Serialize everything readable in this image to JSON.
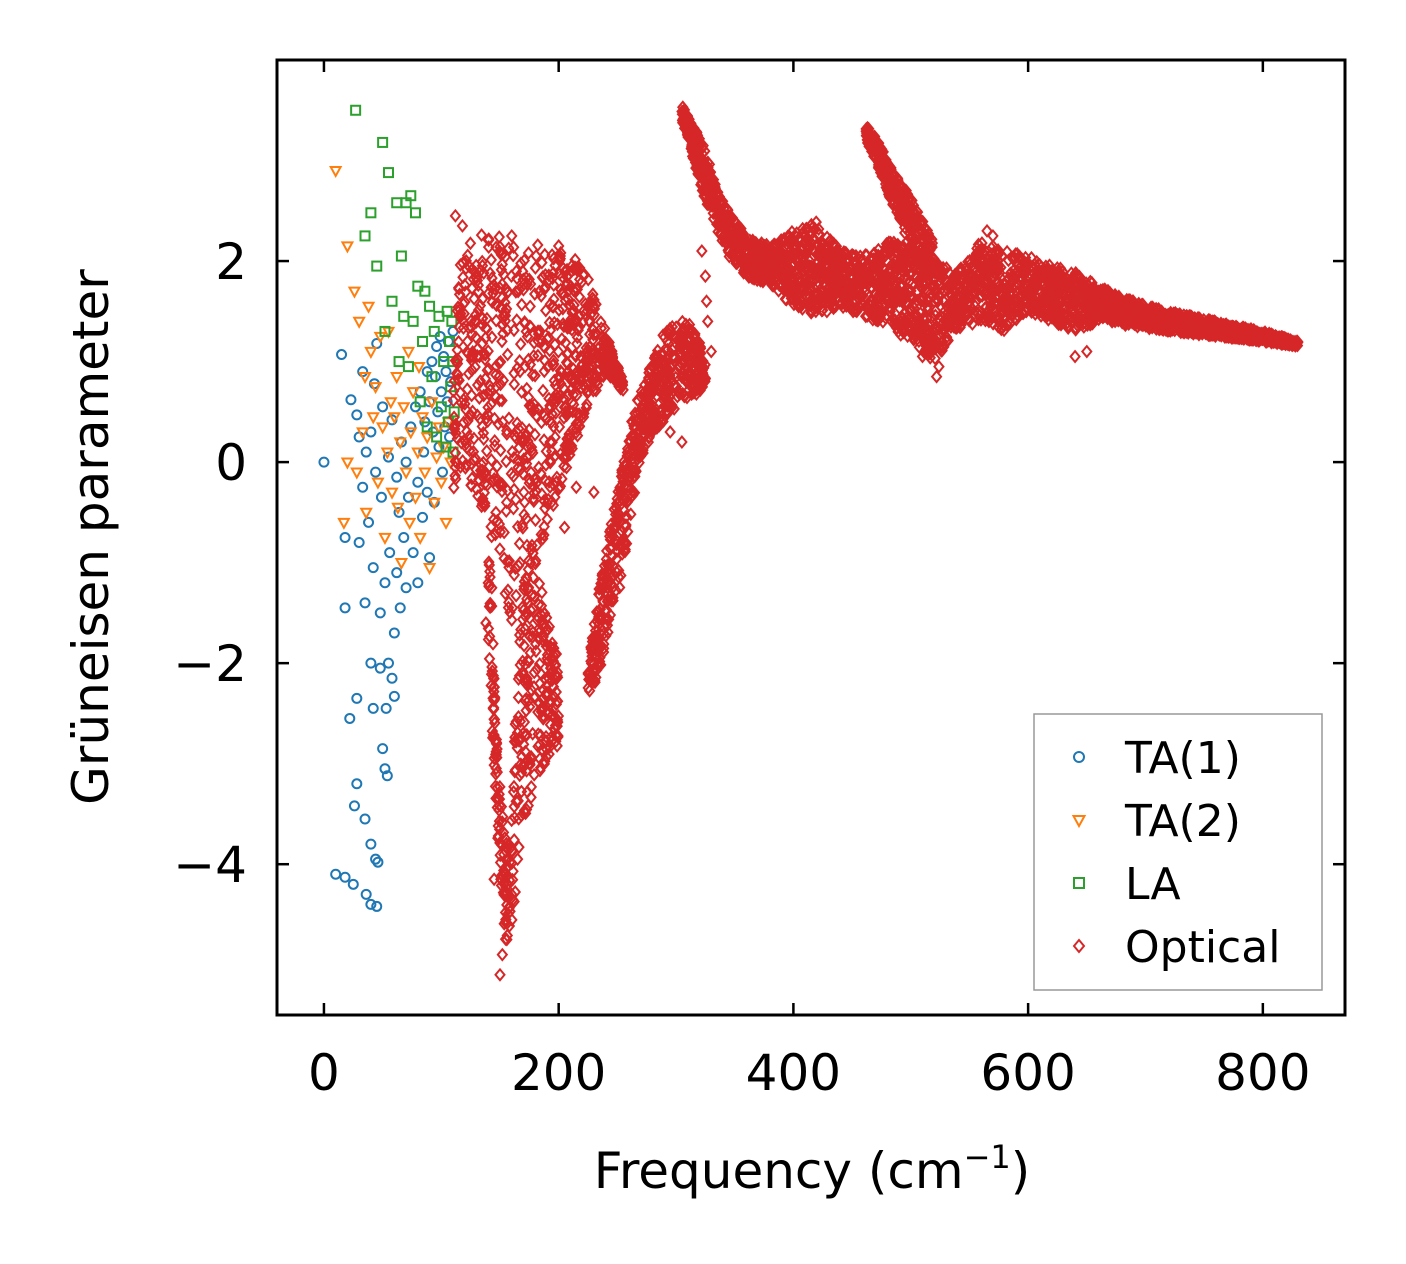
{
  "chart_data": {
    "type": "scatter",
    "title": "",
    "xlabel": "Frequency (cm",
    "xlabel_sup": "−1",
    "xlabel_close": ")",
    "ylabel": "Grüneisen parameter",
    "xlim": [
      -40,
      870
    ],
    "ylim": [
      -5.5,
      4.0
    ],
    "xticks": [
      0,
      200,
      400,
      600,
      800
    ],
    "xtick_labels": [
      "0",
      "200",
      "400",
      "600",
      "800"
    ],
    "yticks": [
      -4,
      -2,
      0,
      2
    ],
    "ytick_labels": [
      "−4",
      "−2",
      "0",
      "2"
    ],
    "grid": false,
    "legend_position": "bottom-right",
    "series": [
      {
        "name": "TA(1)",
        "marker": "circle",
        "color": "#1f77b4",
        "points": [
          [
            0,
            0.0
          ],
          [
            10,
            -4.1
          ],
          [
            15,
            1.07
          ],
          [
            18,
            -0.75
          ],
          [
            18,
            -1.45
          ],
          [
            18,
            -4.13
          ],
          [
            22,
            -2.55
          ],
          [
            23,
            0.62
          ],
          [
            25,
            -4.2
          ],
          [
            26,
            -3.42
          ],
          [
            28,
            -2.35
          ],
          [
            28,
            -3.2
          ],
          [
            28,
            0.47
          ],
          [
            30,
            0.25
          ],
          [
            30,
            -0.8
          ],
          [
            33,
            0.9
          ],
          [
            33,
            -0.25
          ],
          [
            35,
            -3.55
          ],
          [
            35,
            -1.4
          ],
          [
            36,
            -4.3
          ],
          [
            36,
            0.1
          ],
          [
            38,
            -0.6
          ],
          [
            40,
            -2.0
          ],
          [
            40,
            -3.8
          ],
          [
            40,
            0.3
          ],
          [
            40,
            -4.4
          ],
          [
            42,
            -1.05
          ],
          [
            42,
            -2.45
          ],
          [
            43,
            0.78
          ],
          [
            44,
            -0.1
          ],
          [
            44,
            -3.95
          ],
          [
            45,
            -4.42
          ],
          [
            45,
            1.18
          ],
          [
            46,
            -3.98
          ],
          [
            48,
            -1.5
          ],
          [
            48,
            -2.05
          ],
          [
            49,
            -0.35
          ],
          [
            50,
            -2.85
          ],
          [
            50,
            0.55
          ],
          [
            52,
            -3.05
          ],
          [
            52,
            -1.2
          ],
          [
            53,
            -2.45
          ],
          [
            54,
            -3.12
          ],
          [
            55,
            -2.0
          ],
          [
            55,
            0.05
          ],
          [
            56,
            -0.9
          ],
          [
            58,
            -2.15
          ],
          [
            58,
            0.42
          ],
          [
            60,
            -1.7
          ],
          [
            60,
            -2.33
          ],
          [
            62,
            -0.15
          ],
          [
            62,
            -1.1
          ],
          [
            64,
            -0.5
          ],
          [
            65,
            -1.45
          ],
          [
            66,
            0.2
          ],
          [
            68,
            -0.75
          ],
          [
            70,
            -1.25
          ],
          [
            70,
            0.0
          ],
          [
            72,
            -0.35
          ],
          [
            74,
            0.35
          ],
          [
            76,
            -0.9
          ],
          [
            78,
            0.55
          ],
          [
            80,
            -0.2
          ],
          [
            80,
            -1.2
          ],
          [
            82,
            0.7
          ],
          [
            84,
            -0.55
          ],
          [
            85,
            0.1
          ],
          [
            86,
            0.4
          ],
          [
            88,
            -0.3
          ],
          [
            88,
            0.9
          ],
          [
            90,
            0.6
          ],
          [
            90,
            -0.95
          ],
          [
            92,
            1.0
          ],
          [
            93,
            0.3
          ],
          [
            94,
            -0.4
          ],
          [
            95,
            0.85
          ],
          [
            96,
            1.15
          ],
          [
            97,
            0.5
          ],
          [
            98,
            0.15
          ],
          [
            99,
            1.25
          ],
          [
            100,
            0.7
          ],
          [
            101,
            -0.1
          ],
          [
            102,
            1.05
          ],
          [
            103,
            0.35
          ],
          [
            104,
            0.9
          ],
          [
            105,
            0.6
          ],
          [
            106,
            1.2
          ],
          [
            107,
            0.25
          ],
          [
            108,
            0.8
          ],
          [
            110,
            1.3
          ]
        ]
      },
      {
        "name": "TA(2)",
        "marker": "triangle-down",
        "color": "#ff7f0e",
        "points": [
          [
            10,
            2.9
          ],
          [
            17,
            -0.6
          ],
          [
            20,
            2.15
          ],
          [
            20,
            0.0
          ],
          [
            26,
            1.7
          ],
          [
            28,
            -0.1
          ],
          [
            30,
            1.4
          ],
          [
            33,
            0.3
          ],
          [
            35,
            0.85
          ],
          [
            36,
            -0.5
          ],
          [
            38,
            1.55
          ],
          [
            40,
            1.1
          ],
          [
            42,
            0.45
          ],
          [
            44,
            0.75
          ],
          [
            46,
            -0.2
          ],
          [
            48,
            1.25
          ],
          [
            50,
            0.35
          ],
          [
            52,
            -0.75
          ],
          [
            54,
            0.1
          ],
          [
            55,
            1.3
          ],
          [
            57,
            0.6
          ],
          [
            58,
            -0.3
          ],
          [
            60,
            0.45
          ],
          [
            62,
            0.85
          ],
          [
            63,
            -0.45
          ],
          [
            65,
            0.2
          ],
          [
            66,
            -1.0
          ],
          [
            68,
            0.55
          ],
          [
            70,
            -0.1
          ],
          [
            72,
            1.1
          ],
          [
            73,
            -0.6
          ],
          [
            74,
            0.3
          ],
          [
            76,
            0.7
          ],
          [
            78,
            -0.35
          ],
          [
            80,
            0.1
          ],
          [
            81,
            0.95
          ],
          [
            82,
            -0.75
          ],
          [
            84,
            0.45
          ],
          [
            86,
            -0.1
          ],
          [
            88,
            0.25
          ],
          [
            90,
            -1.05
          ],
          [
            92,
            0.6
          ],
          [
            94,
            -0.4
          ],
          [
            96,
            0.05
          ],
          [
            98,
            0.35
          ],
          [
            100,
            -0.2
          ],
          [
            102,
            0.15
          ],
          [
            104,
            -0.6
          ],
          [
            106,
            0.4
          ],
          [
            108,
            0.0
          ]
        ]
      },
      {
        "name": "LA",
        "marker": "square",
        "color": "#2ca02c",
        "points": [
          [
            27,
            3.5
          ],
          [
            35,
            2.25
          ],
          [
            40,
            2.48
          ],
          [
            45,
            1.95
          ],
          [
            50,
            3.18
          ],
          [
            52,
            1.3
          ],
          [
            55,
            2.88
          ],
          [
            58,
            1.6
          ],
          [
            62,
            2.58
          ],
          [
            64,
            1.0
          ],
          [
            66,
            2.05
          ],
          [
            68,
            1.45
          ],
          [
            70,
            2.58
          ],
          [
            72,
            0.95
          ],
          [
            74,
            2.65
          ],
          [
            76,
            1.4
          ],
          [
            78,
            2.48
          ],
          [
            80,
            1.75
          ],
          [
            82,
            0.6
          ],
          [
            84,
            1.2
          ],
          [
            86,
            1.7
          ],
          [
            88,
            0.35
          ],
          [
            90,
            1.55
          ],
          [
            92,
            0.85
          ],
          [
            94,
            1.3
          ],
          [
            96,
            0.25
          ],
          [
            98,
            1.45
          ],
          [
            100,
            0.55
          ],
          [
            102,
            1.0
          ],
          [
            104,
            0.15
          ],
          [
            105,
            1.5
          ],
          [
            106,
            0.4
          ],
          [
            107,
            1.2
          ],
          [
            108,
            0.75
          ],
          [
            109,
            1.4
          ],
          [
            110,
            0.1
          ],
          [
            110,
            1.0
          ],
          [
            111,
            0.5
          ]
        ]
      },
      {
        "name": "Optical",
        "marker": "diamond",
        "color": "#d62728",
        "bands": [
          {
            "x": [
              110,
              120,
              140,
              160,
              180,
              200,
              220,
              240,
              255
            ],
            "upper": [
              1.6,
              2.2,
              2.3,
              2.2,
              2.2,
              2.1,
              2.0,
              1.3,
              0.8
            ],
            "lower": [
              -0.3,
              -0.1,
              -0.6,
              -1.6,
              -1.0,
              -0.3,
              0.4,
              0.9,
              0.7
            ]
          },
          {
            "x": [
              140,
              148,
              155,
              160,
              165,
              170,
              180,
              190,
              200
            ],
            "upper": [
              -0.5,
              -3.0,
              -3.8,
              -3.4,
              -2.0,
              -1.2,
              -1.0,
              -1.5,
              -2.0
            ],
            "lower": [
              -1.8,
              -3.8,
              -4.9,
              -4.6,
              -4.2,
              -3.6,
              -3.2,
              -3.0,
              -2.8
            ]
          },
          {
            "x": [
              225,
              235,
              245,
              255,
              262,
              270,
              280,
              290,
              300,
              310,
              320,
              325
            ],
            "upper": [
              -2.0,
              -1.2,
              -0.6,
              0.0,
              0.5,
              0.7,
              1.0,
              1.3,
              1.4,
              1.4,
              1.2,
              1.0
            ],
            "lower": [
              -2.35,
              -2.1,
              -1.6,
              -1.1,
              -0.5,
              0.0,
              0.3,
              0.4,
              0.55,
              0.6,
              0.7,
              0.8
            ]
          },
          {
            "x": [
              305,
              315,
              325,
              335,
              345,
              360,
              380,
              400,
              420,
              440,
              460,
              480,
              500,
              520,
              540,
              560,
              580,
              600,
              620,
              640,
              660,
              690,
              720,
              760,
              800,
              830
            ],
            "upper": [
              3.55,
              3.35,
              3.1,
              2.7,
              2.5,
              2.25,
              2.15,
              2.3,
              2.4,
              2.1,
              2.05,
              2.2,
              2.15,
              2.0,
              1.9,
              2.2,
              2.1,
              2.05,
              1.95,
              1.9,
              1.75,
              1.6,
              1.5,
              1.4,
              1.3,
              1.2
            ],
            "lower": [
              3.4,
              3.0,
              2.6,
              2.3,
              2.05,
              1.85,
              1.75,
              1.55,
              1.45,
              1.55,
              1.45,
              1.35,
              1.2,
              1.0,
              1.3,
              1.4,
              1.3,
              1.5,
              1.4,
              1.3,
              1.4,
              1.35,
              1.3,
              1.25,
              1.2,
              1.15
            ]
          },
          {
            "x": [
              462,
              470,
              480,
              490,
              500,
              510,
              520
            ],
            "upper": [
              3.35,
              3.25,
              3.0,
              2.8,
              2.65,
              2.4,
              2.2
            ],
            "lower": [
              3.2,
              3.0,
              2.7,
              2.4,
              2.1,
              1.9,
              1.8
            ]
          }
        ],
        "outliers": [
          [
            150,
            -5.1
          ],
          [
            152,
            -4.9
          ],
          [
            155,
            -4.55
          ],
          [
            145,
            -4.15
          ],
          [
            160,
            -4.3
          ],
          [
            165,
            -3.95
          ],
          [
            138,
            -1.6
          ],
          [
            143,
            -1.25
          ],
          [
            205,
            -0.65
          ],
          [
            215,
            -0.25
          ],
          [
            230,
            -0.3
          ],
          [
            235,
            -1.7
          ],
          [
            322,
            2.1
          ],
          [
            325,
            1.85
          ],
          [
            326,
            1.6
          ],
          [
            327,
            1.4
          ],
          [
            330,
            1.1
          ],
          [
            510,
            1.05
          ],
          [
            522,
            0.85
          ],
          [
            524,
            0.95
          ],
          [
            640,
            1.05
          ],
          [
            650,
            1.1
          ],
          [
            565,
            2.3
          ],
          [
            570,
            2.25
          ],
          [
            295,
            0.3
          ],
          [
            305,
            0.2
          ],
          [
            112,
            2.45
          ],
          [
            118,
            2.35
          ],
          [
            160,
            2.25
          ],
          [
            200,
            2.15
          ]
        ]
      }
    ]
  }
}
